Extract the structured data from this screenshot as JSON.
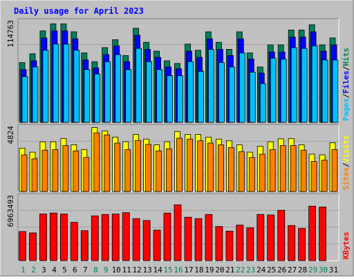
{
  "title": "Daily usage for April 2023",
  "colors": {
    "background": "#c0c0c0",
    "hits": "#00805c",
    "files": "#0000ff",
    "pages": "#00c0ff",
    "visits": "#ffff00",
    "sites": "#ff8000",
    "kbytes": "#ff0000",
    "title": "#0000ff",
    "weekend_day": "#00805c",
    "weekday": "#000000"
  },
  "chart_data": [
    {
      "type": "bar",
      "panel": "hits-files-pages",
      "x": [
        "1",
        "2",
        "3",
        "4",
        "5",
        "6",
        "7",
        "8",
        "9",
        "10",
        "11",
        "12",
        "13",
        "14",
        "15",
        "16",
        "17",
        "18",
        "19",
        "20",
        "21",
        "22",
        "23",
        "24",
        "25",
        "26",
        "27",
        "28",
        "29",
        "30",
        "31"
      ],
      "ymax_label": "114763",
      "ylim": [
        0,
        114763
      ],
      "side_labels": [
        "Pages",
        "Files",
        "Hits"
      ],
      "series": [
        {
          "name": "Hits",
          "values": [
            68000,
            78000,
            104000,
            112000,
            112000,
            103000,
            79000,
            69000,
            85000,
            94000,
            76000,
            107000,
            91000,
            81000,
            70000,
            67000,
            89000,
            82000,
            103000,
            91000,
            83000,
            103000,
            79000,
            63000,
            88000,
            88000,
            105000,
            105000,
            111000,
            88000,
            96000
          ]
        },
        {
          "name": "Files",
          "values": [
            60000,
            70000,
            96000,
            104000,
            104000,
            95000,
            71000,
            62000,
            77000,
            87000,
            69000,
            99000,
            83000,
            74000,
            63000,
            61000,
            81000,
            74000,
            95000,
            83000,
            76000,
            95000,
            72000,
            56000,
            80000,
            80000,
            97000,
            97000,
            103000,
            81000,
            88000
          ]
        },
        {
          "name": "Pages",
          "values": [
            52000,
            63000,
            82000,
            89000,
            89000,
            82000,
            60000,
            55000,
            69000,
            77000,
            60000,
            84000,
            69000,
            60000,
            53000,
            53000,
            69000,
            58000,
            83000,
            68000,
            63000,
            79000,
            57000,
            44000,
            73000,
            72000,
            85000,
            84000,
            87000,
            71000,
            71000
          ]
        }
      ]
    },
    {
      "type": "bar",
      "panel": "visits-sites",
      "x": [
        "1",
        "2",
        "3",
        "4",
        "5",
        "6",
        "7",
        "8",
        "9",
        "10",
        "11",
        "12",
        "13",
        "14",
        "15",
        "16",
        "17",
        "18",
        "19",
        "20",
        "21",
        "22",
        "23",
        "24",
        "25",
        "26",
        "27",
        "28",
        "29",
        "30",
        "31"
      ],
      "ymax_label": "4824",
      "ylim": [
        0,
        4824
      ],
      "side_labels": [
        "Sites",
        "Visits"
      ],
      "series": [
        {
          "name": "Visits",
          "values": [
            3250,
            2950,
            3730,
            3730,
            3980,
            3500,
            3150,
            4800,
            4550,
            4080,
            3730,
            4280,
            3930,
            3500,
            3730,
            4500,
            4280,
            4280,
            4080,
            3930,
            3800,
            3500,
            2950,
            3400,
            3730,
            3950,
            3980,
            3500,
            2800,
            2750,
            3650
          ]
        },
        {
          "name": "Sites",
          "values": [
            2750,
            2450,
            3100,
            3150,
            3450,
            3050,
            2550,
            4400,
            4250,
            3630,
            3150,
            3830,
            3530,
            3050,
            3200,
            4000,
            3930,
            3800,
            3630,
            3500,
            3300,
            3000,
            2550,
            2800,
            3150,
            3450,
            3450,
            3100,
            2250,
            2350,
            3150
          ]
        }
      ]
    },
    {
      "type": "bar",
      "panel": "kbytes",
      "x": [
        "1",
        "2",
        "3",
        "4",
        "5",
        "6",
        "7",
        "8",
        "9",
        "10",
        "11",
        "12",
        "13",
        "14",
        "15",
        "16",
        "17",
        "18",
        "19",
        "20",
        "21",
        "22",
        "23",
        "24",
        "25",
        "26",
        "27",
        "28",
        "29",
        "30",
        "31"
      ],
      "ymax_label": "6963493",
      "ylim": [
        0,
        6963493
      ],
      "side_labels": [
        "KBytes"
      ],
      "series": [
        {
          "name": "KBytes",
          "values": [
            3150000,
            3000000,
            5050000,
            5150000,
            5050000,
            4150000,
            3250000,
            4850000,
            5000000,
            5050000,
            5200000,
            4550000,
            4350000,
            3300000,
            5150000,
            6050000,
            4700000,
            4550000,
            5000000,
            3700000,
            3200000,
            3850000,
            3550000,
            5000000,
            4950000,
            5450000,
            3800000,
            3500000,
            5900000,
            5800000,
            0
          ]
        }
      ]
    }
  ]
}
